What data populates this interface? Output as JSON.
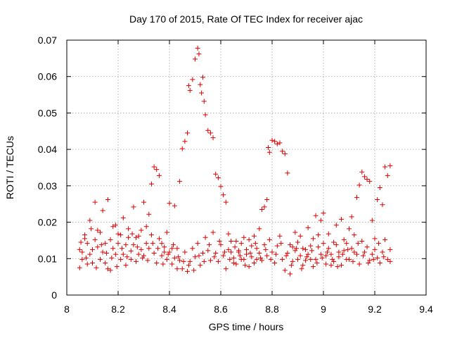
{
  "chart_data": {
    "type": "scatter",
    "title": "Day 170 of 2015, Rate Of TEC Index for receiver ajac",
    "xlabel": "GPS time / hours",
    "ylabel": "ROTI / TECUs",
    "xlim": [
      8,
      9.4
    ],
    "ylim": [
      0,
      0.07
    ],
    "x_ticks": [
      "8",
      "8.2",
      "8.4",
      "8.6",
      "8.8",
      "9",
      "9.2",
      "9.4"
    ],
    "y_ticks": [
      "0",
      "0.01",
      "0.02",
      "0.03",
      "0.04",
      "0.05",
      "0.06",
      "0.07"
    ],
    "grid": true,
    "marker": "+",
    "color": "#dd0000",
    "series": [
      {
        "values": [
          [
            8.05,
            0.0075
          ],
          [
            8.06,
            0.0118
          ],
          [
            8.07,
            0.0155
          ],
          [
            8.08,
            0.0085
          ],
          [
            8.09,
            0.0205
          ],
          [
            8.1,
            0.0125
          ],
          [
            8.11,
            0.0255
          ],
          [
            8.12,
            0.0178
          ],
          [
            8.13,
            0.0098
          ],
          [
            8.14,
            0.0232
          ],
          [
            8.15,
            0.0142
          ],
          [
            8.16,
            0.0262
          ],
          [
            8.17,
            0.0068
          ],
          [
            8.18,
            0.0188
          ],
          [
            8.19,
            0.0112
          ],
          [
            8.2,
            0.0168
          ],
          [
            8.21,
            0.0098
          ],
          [
            8.22,
            0.0212
          ],
          [
            8.23,
            0.0138
          ],
          [
            8.24,
            0.0182
          ],
          [
            8.25,
            0.0121
          ],
          [
            8.26,
            0.0242
          ],
          [
            8.27,
            0.0158
          ],
          [
            8.28,
            0.0112
          ],
          [
            8.29,
            0.0178
          ],
          [
            8.3,
            0.0255
          ],
          [
            8.31,
            0.0142
          ],
          [
            8.32,
            0.0222
          ],
          [
            8.33,
            0.0305
          ],
          [
            8.34,
            0.0352
          ],
          [
            8.35,
            0.0345
          ],
          [
            8.36,
            0.0328
          ],
          [
            8.37,
            0.0142
          ],
          [
            8.38,
            0.0118
          ],
          [
            8.39,
            0.0098
          ],
          [
            8.4,
            0.0252
          ],
          [
            8.41,
            0.0128
          ],
          [
            8.42,
            0.0245
          ],
          [
            8.43,
            0.0072
          ],
          [
            8.44,
            0.0312
          ],
          [
            8.45,
            0.0402
          ],
          [
            8.46,
            0.0422
          ],
          [
            8.47,
            0.0445
          ],
          [
            8.475,
            0.0575
          ],
          [
            8.48,
            0.0562
          ],
          [
            8.49,
            0.0592
          ],
          [
            8.5,
            0.0648
          ],
          [
            8.51,
            0.0678
          ],
          [
            8.515,
            0.0662
          ],
          [
            8.52,
            0.0578
          ],
          [
            8.525,
            0.0555
          ],
          [
            8.53,
            0.0598
          ],
          [
            8.535,
            0.0532
          ],
          [
            8.54,
            0.0495
          ],
          [
            8.55,
            0.0452
          ],
          [
            8.56,
            0.0445
          ],
          [
            8.57,
            0.0432
          ],
          [
            8.58,
            0.0332
          ],
          [
            8.59,
            0.0322
          ],
          [
            8.6,
            0.0298
          ],
          [
            8.61,
            0.0275
          ],
          [
            8.62,
            0.0255
          ],
          [
            8.63,
            0.0168
          ],
          [
            8.64,
            0.0118
          ],
          [
            8.65,
            0.0088
          ],
          [
            8.66,
            0.0148
          ],
          [
            8.67,
            0.0122
          ],
          [
            8.68,
            0.0098
          ],
          [
            8.69,
            0.0158
          ],
          [
            8.7,
            0.0112
          ],
          [
            8.71,
            0.0078
          ],
          [
            8.72,
            0.0135
          ],
          [
            8.73,
            0.0162
          ],
          [
            8.74,
            0.0098
          ],
          [
            8.75,
            0.0182
          ],
          [
            8.76,
            0.0235
          ],
          [
            8.77,
            0.0242
          ],
          [
            8.78,
            0.0262
          ],
          [
            8.785,
            0.0405
          ],
          [
            8.79,
            0.0392
          ],
          [
            8.8,
            0.0425
          ],
          [
            8.81,
            0.0422
          ],
          [
            8.82,
            0.0415
          ],
          [
            8.83,
            0.0418
          ],
          [
            8.84,
            0.0395
          ],
          [
            8.85,
            0.0388
          ],
          [
            8.86,
            0.0335
          ],
          [
            8.87,
            0.0058
          ],
          [
            8.88,
            0.0132
          ],
          [
            8.89,
            0.0172
          ],
          [
            8.9,
            0.0098
          ],
          [
            8.91,
            0.0162
          ],
          [
            8.92,
            0.0082
          ],
          [
            8.93,
            0.0125
          ],
          [
            8.94,
            0.0185
          ],
          [
            8.95,
            0.0098
          ],
          [
            8.96,
            0.0155
          ],
          [
            8.97,
            0.0218
          ],
          [
            8.98,
            0.0132
          ],
          [
            8.99,
            0.0205
          ],
          [
            9.0,
            0.0225
          ],
          [
            9.01,
            0.0108
          ],
          [
            9.02,
            0.0168
          ],
          [
            9.03,
            0.0082
          ],
          [
            9.04,
            0.0145
          ],
          [
            9.05,
            0.0192
          ],
          [
            9.06,
            0.0118
          ],
          [
            9.07,
            0.0208
          ],
          [
            9.08,
            0.0152
          ],
          [
            9.09,
            0.0098
          ],
          [
            9.1,
            0.0182
          ],
          [
            9.11,
            0.0215
          ],
          [
            9.12,
            0.0118
          ],
          [
            9.13,
            0.0268
          ],
          [
            9.14,
            0.0302
          ],
          [
            9.15,
            0.0338
          ],
          [
            9.16,
            0.0325
          ],
          [
            9.17,
            0.0318
          ],
          [
            9.18,
            0.0312
          ],
          [
            9.19,
            0.0205
          ],
          [
            9.2,
            0.0155
          ],
          [
            9.21,
            0.0262
          ],
          [
            9.22,
            0.0295
          ],
          [
            9.23,
            0.0248
          ],
          [
            9.24,
            0.0352
          ],
          [
            9.25,
            0.0328
          ],
          [
            9.26,
            0.0355
          ],
          [
            9.26,
            0.0125
          ],
          [
            9.25,
            0.0098
          ],
          [
            9.24,
            0.0152
          ],
          [
            8.05,
            0.0125
          ],
          [
            8.06,
            0.0098
          ],
          [
            8.07,
            0.0165
          ],
          [
            8.08,
            0.0142
          ],
          [
            8.09,
            0.0112
          ],
          [
            8.1,
            0.0088
          ],
          [
            8.11,
            0.0152
          ],
          [
            8.12,
            0.0132
          ],
          [
            8.13,
            0.0172
          ],
          [
            8.14,
            0.0118
          ],
          [
            8.15,
            0.0088
          ],
          [
            8.16,
            0.0072
          ],
          [
            8.17,
            0.0152
          ],
          [
            8.18,
            0.0128
          ],
          [
            8.19,
            0.0192
          ],
          [
            8.2,
            0.0142
          ],
          [
            8.21,
            0.0165
          ],
          [
            8.22,
            0.0112
          ],
          [
            8.23,
            0.0082
          ],
          [
            8.24,
            0.0158
          ],
          [
            8.25,
            0.0098
          ],
          [
            8.26,
            0.0138
          ],
          [
            8.27,
            0.0092
          ],
          [
            8.28,
            0.0162
          ],
          [
            8.29,
            0.0125
          ],
          [
            8.3,
            0.0108
          ],
          [
            8.31,
            0.0188
          ],
          [
            8.32,
            0.0128
          ],
          [
            8.33,
            0.0165
          ],
          [
            8.34,
            0.0115
          ],
          [
            8.35,
            0.0088
          ],
          [
            8.36,
            0.0155
          ],
          [
            8.37,
            0.0108
          ],
          [
            8.38,
            0.0132
          ],
          [
            8.39,
            0.0172
          ],
          [
            8.4,
            0.0118
          ],
          [
            8.41,
            0.0085
          ],
          [
            8.42,
            0.0102
          ],
          [
            8.43,
            0.0128
          ],
          [
            8.44,
            0.0095
          ],
          [
            8.45,
            0.0072
          ],
          [
            8.46,
            0.0118
          ],
          [
            8.47,
            0.0065
          ],
          [
            8.48,
            0.0092
          ],
          [
            8.49,
            0.0128
          ],
          [
            8.5,
            0.0105
          ],
          [
            8.51,
            0.0142
          ],
          [
            8.52,
            0.0082
          ],
          [
            8.53,
            0.0115
          ],
          [
            8.54,
            0.0158
          ],
          [
            8.55,
            0.0122
          ],
          [
            8.56,
            0.0095
          ],
          [
            8.57,
            0.0172
          ],
          [
            8.58,
            0.0115
          ],
          [
            8.59,
            0.0092
          ],
          [
            8.6,
            0.0138
          ],
          [
            8.61,
            0.0108
          ],
          [
            8.62,
            0.0072
          ],
          [
            8.63,
            0.0125
          ],
          [
            8.64,
            0.0148
          ],
          [
            8.65,
            0.0102
          ],
          [
            8.66,
            0.0085
          ],
          [
            8.67,
            0.0118
          ],
          [
            8.68,
            0.0142
          ],
          [
            8.69,
            0.0098
          ],
          [
            8.7,
            0.0125
          ],
          [
            8.71,
            0.0152
          ],
          [
            8.72,
            0.0105
          ],
          [
            8.73,
            0.0088
          ],
          [
            8.74,
            0.0128
          ],
          [
            8.75,
            0.0115
          ],
          [
            8.76,
            0.0095
          ],
          [
            8.77,
            0.0138
          ],
          [
            8.78,
            0.0108
          ],
          [
            8.79,
            0.0152
          ],
          [
            8.8,
            0.0118
          ],
          [
            8.81,
            0.0088
          ],
          [
            8.82,
            0.0135
          ],
          [
            8.83,
            0.0162
          ],
          [
            8.84,
            0.0098
          ],
          [
            8.85,
            0.0068
          ],
          [
            8.86,
            0.0115
          ],
          [
            8.87,
            0.0138
          ],
          [
            8.88,
            0.0092
          ],
          [
            8.89,
            0.0122
          ],
          [
            8.9,
            0.0145
          ],
          [
            8.91,
            0.0108
          ],
          [
            8.92,
            0.0128
          ],
          [
            8.93,
            0.0095
          ],
          [
            8.94,
            0.0112
          ],
          [
            8.95,
            0.0135
          ],
          [
            8.96,
            0.0078
          ],
          [
            8.97,
            0.0098
          ],
          [
            8.98,
            0.0165
          ],
          [
            8.99,
            0.0112
          ],
          [
            9.0,
            0.0142
          ],
          [
            9.01,
            0.0085
          ],
          [
            9.02,
            0.0128
          ],
          [
            9.03,
            0.0112
          ],
          [
            9.04,
            0.0092
          ],
          [
            9.05,
            0.0138
          ],
          [
            9.06,
            0.0105
          ],
          [
            9.07,
            0.0082
          ],
          [
            9.08,
            0.0122
          ],
          [
            9.09,
            0.0142
          ],
          [
            9.1,
            0.0098
          ],
          [
            9.11,
            0.0128
          ],
          [
            9.12,
            0.0165
          ],
          [
            9.13,
            0.0112
          ],
          [
            9.14,
            0.0085
          ],
          [
            9.15,
            0.0148
          ],
          [
            9.16,
            0.0118
          ],
          [
            9.17,
            0.0132
          ],
          [
            9.18,
            0.0095
          ],
          [
            9.19,
            0.0112
          ],
          [
            9.2,
            0.0125
          ],
          [
            9.21,
            0.0102
          ],
          [
            9.22,
            0.0088
          ],
          [
            9.23,
            0.0118
          ],
          [
            9.26,
            0.0092
          ],
          [
            8.055,
            0.0145
          ],
          [
            8.075,
            0.0102
          ],
          [
            8.095,
            0.0182
          ],
          [
            8.115,
            0.0075
          ],
          [
            8.135,
            0.0138
          ],
          [
            8.155,
            0.0115
          ],
          [
            8.175,
            0.0102
          ],
          [
            8.195,
            0.0078
          ],
          [
            8.215,
            0.0128
          ],
          [
            8.235,
            0.0105
          ],
          [
            8.255,
            0.0168
          ],
          [
            8.275,
            0.0132
          ],
          [
            8.295,
            0.0102
          ],
          [
            8.315,
            0.0095
          ],
          [
            8.335,
            0.0142
          ],
          [
            8.355,
            0.0128
          ],
          [
            8.375,
            0.0085
          ],
          [
            8.395,
            0.0112
          ],
          [
            8.415,
            0.0138
          ],
          [
            8.435,
            0.0105
          ],
          [
            8.455,
            0.0092
          ],
          [
            8.475,
            0.0082
          ],
          [
            8.495,
            0.0068
          ],
          [
            8.515,
            0.0108
          ],
          [
            8.535,
            0.0092
          ],
          [
            8.555,
            0.0138
          ],
          [
            8.575,
            0.0105
          ],
          [
            8.595,
            0.0148
          ],
          [
            8.615,
            0.0118
          ],
          [
            8.635,
            0.0098
          ],
          [
            8.655,
            0.0132
          ],
          [
            8.675,
            0.0108
          ],
          [
            8.695,
            0.0082
          ],
          [
            8.715,
            0.0115
          ],
          [
            8.735,
            0.0142
          ],
          [
            8.755,
            0.0102
          ],
          [
            8.775,
            0.0125
          ],
          [
            8.795,
            0.0098
          ],
          [
            8.815,
            0.0112
          ],
          [
            8.835,
            0.0142
          ],
          [
            8.855,
            0.0108
          ],
          [
            8.875,
            0.0082
          ],
          [
            8.895,
            0.0128
          ],
          [
            8.915,
            0.0072
          ],
          [
            8.935,
            0.0105
          ],
          [
            8.955,
            0.0122
          ],
          [
            8.975,
            0.0088
          ],
          [
            8.995,
            0.0102
          ],
          [
            9.015,
            0.0118
          ],
          [
            9.035,
            0.0098
          ],
          [
            9.055,
            0.0078
          ],
          [
            9.075,
            0.0112
          ],
          [
            9.095,
            0.0125
          ],
          [
            9.115,
            0.0092
          ],
          [
            9.135,
            0.0142
          ],
          [
            9.155,
            0.0108
          ],
          [
            9.175,
            0.0088
          ],
          [
            9.195,
            0.0098
          ],
          [
            9.215,
            0.0142
          ],
          [
            9.235,
            0.0105
          ]
        ]
      }
    ]
  }
}
